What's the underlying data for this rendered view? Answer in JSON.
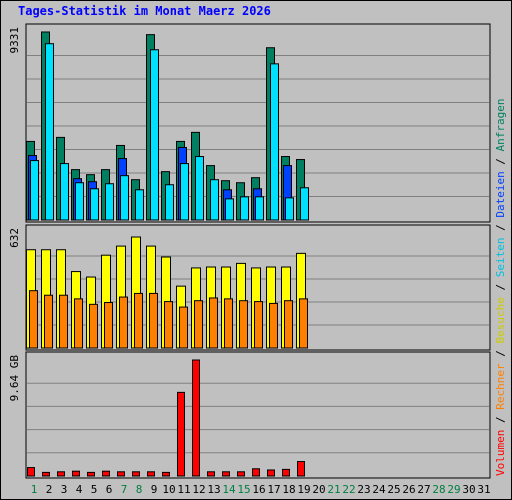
{
  "title": "Tages-Statistik im Monat Maerz 2026",
  "chart_data": {
    "type": "bar",
    "title": "Tages-Statistik im Monat Maerz 2026",
    "categories": [
      "1",
      "2",
      "3",
      "4",
      "5",
      "6",
      "7",
      "8",
      "9",
      "10",
      "11",
      "12",
      "13",
      "14",
      "15",
      "16",
      "17",
      "18",
      "19",
      "20",
      "21",
      "22",
      "23",
      "24",
      "25",
      "26",
      "27",
      "28",
      "29",
      "30",
      "31"
    ],
    "weekend_days": [
      "1",
      "7",
      "8",
      "14",
      "15",
      "21",
      "22",
      "28",
      "29"
    ],
    "colors": {
      "weekday_label": "#000000",
      "weekend_label": "#008040",
      "anfragen": "#008060",
      "dateien": "#0040ff",
      "seiten": "#00e0ff",
      "besuche": "#ffff00",
      "rechner": "#ff8000",
      "volumen": "#ff0000",
      "background": "#c0c0c0",
      "title": "#0000ff"
    },
    "legend_right": [
      {
        "label": "Volumen",
        "color": "#ff0000"
      },
      {
        "label": "Rechner",
        "color": "#ff8000"
      },
      {
        "label": "Besuche",
        "color": "#cccc00"
      },
      {
        "label": "Seiten",
        "color": "#00c0e0"
      },
      {
        "label": "Dateien",
        "color": "#0040ff"
      },
      {
        "label": "Anfragen",
        "color": "#008060"
      }
    ],
    "legend_sep": "/",
    "panels": [
      {
        "name": "requests",
        "max_label": "9331",
        "ylim": [
          0,
          9331
        ],
        "series": [
          {
            "name": "Anfragen",
            "values": [
              3900,
              9331,
              4100,
              2500,
              2250,
              2500,
              3700,
              2000,
              9200,
              2400,
              3900,
              4350,
              2700,
              1950,
              1850,
              2100,
              8550,
              3150,
              3000,
              0,
              0,
              0,
              0,
              0,
              0,
              0,
              0,
              0,
              0,
              0,
              0
            ]
          },
          {
            "name": "Dateien",
            "values": [
              3200,
              0,
              0,
              2050,
              1900,
              0,
              3050,
              0,
              0,
              0,
              3600,
              0,
              0,
              1500,
              0,
              1550,
              0,
              2700,
              0,
              0,
              0,
              0,
              0,
              0,
              0,
              0,
              0,
              0,
              0,
              0,
              0
            ]
          },
          {
            "name": "Seiten",
            "values": [
              2950,
              8750,
              2800,
              1850,
              1550,
              1800,
              2200,
              1500,
              8450,
              1750,
              2800,
              3150,
              2000,
              1050,
              1150,
              1150,
              7750,
              1100,
              1600,
              0,
              0,
              0,
              0,
              0,
              0,
              0,
              0,
              0,
              0,
              0,
              0
            ]
          }
        ]
      },
      {
        "name": "visits",
        "max_label": "632",
        "ylim": [
          0,
          632
        ],
        "series": [
          {
            "name": "Besuche",
            "values": [
              540,
              540,
              540,
              420,
              390,
              510,
              560,
              610,
              560,
              500,
              340,
              440,
              445,
              445,
              465,
              440,
              445,
              445,
              520,
              0,
              0,
              0,
              0,
              0,
              0,
              0,
              0,
              0,
              0,
              0,
              0
            ]
          },
          {
            "name": "Rechner",
            "values": [
              315,
              290,
              290,
              270,
              240,
              250,
              280,
              300,
              300,
              255,
              225,
              260,
              275,
              270,
              260,
              255,
              245,
              260,
              270,
              0,
              0,
              0,
              0,
              0,
              0,
              0,
              0,
              0,
              0,
              0,
              0
            ]
          }
        ]
      },
      {
        "name": "volume",
        "max_label": "9.64 GB",
        "ylim": [
          0,
          9.64
        ],
        "series": [
          {
            "name": "Volumen",
            "values": [
              0.7,
              0.3,
              0.35,
              0.4,
              0.3,
              0.4,
              0.35,
              0.35,
              0.35,
              0.3,
              6.95,
              9.64,
              0.35,
              0.35,
              0.35,
              0.6,
              0.5,
              0.55,
              1.2,
              0,
              0,
              0,
              0,
              0,
              0,
              0,
              0,
              0,
              0,
              0,
              0
            ]
          }
        ]
      }
    ]
  }
}
